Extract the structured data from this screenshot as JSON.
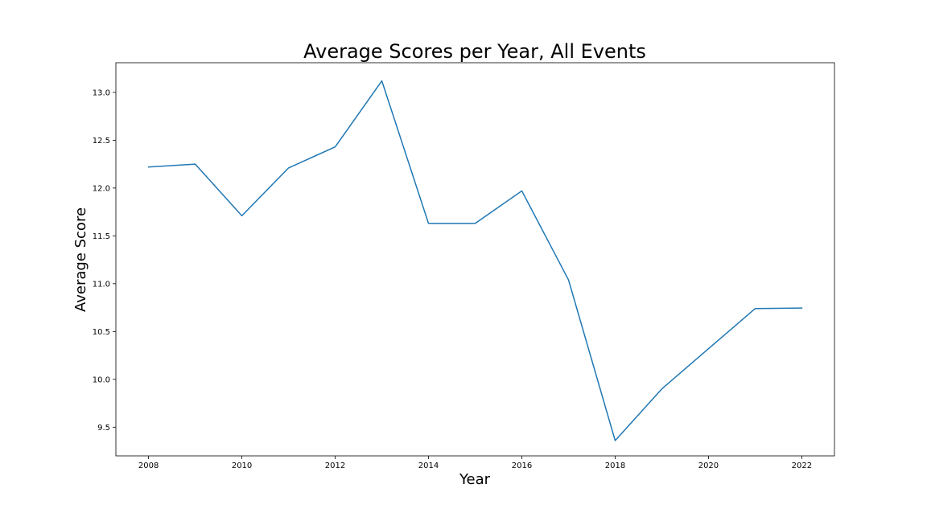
{
  "chart_data": {
    "type": "line",
    "title": "Average Scores per Year, All Events",
    "xlabel": "Year",
    "ylabel": "Average Score",
    "x": [
      2008,
      2009,
      2010,
      2011,
      2012,
      2013,
      2014,
      2015,
      2016,
      2017,
      2018,
      2019,
      2020,
      2021,
      2022
    ],
    "series": [
      {
        "values": [
          12.22,
          12.25,
          11.71,
          12.21,
          12.43,
          13.12,
          11.63,
          11.63,
          11.97,
          11.04,
          9.36,
          9.9,
          10.32,
          10.74,
          10.745
        ],
        "color": "#1f77b4"
      }
    ],
    "xlim": [
      2007.3,
      2022.7
    ],
    "ylim": [
      9.2,
      13.31
    ],
    "xticks": [
      2008,
      2010,
      2012,
      2014,
      2016,
      2018,
      2020,
      2022
    ],
    "yticks": [
      9.5,
      10.0,
      10.5,
      11.0,
      11.5,
      12.0,
      12.5,
      13.0
    ],
    "xtick_labels": [
      "2008",
      "2010",
      "2012",
      "2014",
      "2016",
      "2018",
      "2020",
      "2022"
    ],
    "ytick_labels": [
      "9.5",
      "10.0",
      "10.5",
      "11.0",
      "11.5",
      "12.0",
      "12.5",
      "13.0"
    ],
    "grid": false,
    "legend": "none"
  }
}
